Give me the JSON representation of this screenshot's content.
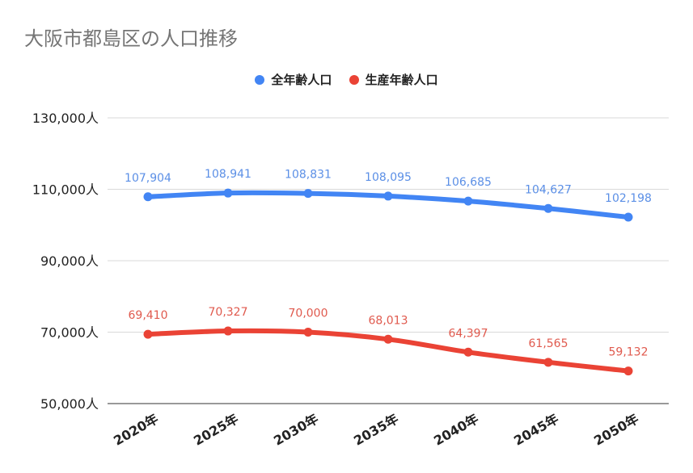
{
  "chart_data": {
    "type": "line",
    "title": "大阪市都島区の人口推移",
    "categories": [
      "2020年",
      "2025年",
      "2030年",
      "2035年",
      "2040年",
      "2045年",
      "2050年"
    ],
    "series": [
      {
        "name": "全年齢人口",
        "color": "#4285f4",
        "labelColor": "#5b8fe6",
        "values": [
          107904,
          108941,
          108831,
          108095,
          106685,
          104627,
          102198
        ],
        "labels": [
          "107,904",
          "108,941",
          "108,831",
          "108,095",
          "106,685",
          "104,627",
          "102,198"
        ]
      },
      {
        "name": "生産年齢人口",
        "color": "#ea4335",
        "labelColor": "#e05a4e",
        "values": [
          69410,
          70327,
          70000,
          68013,
          64397,
          61565,
          59132
        ],
        "labels": [
          "69,410",
          "70,327",
          "70,000",
          "68,013",
          "64,397",
          "61,565",
          "59,132"
        ]
      }
    ],
    "yticks": [
      50000,
      70000,
      90000,
      110000,
      130000
    ],
    "ytick_labels": [
      "50,000人",
      "70,000人",
      "90,000人",
      "110,000人",
      "130,000人"
    ],
    "ylim": [
      50000,
      130000
    ],
    "grid": true,
    "legend_position": "top-center"
  }
}
